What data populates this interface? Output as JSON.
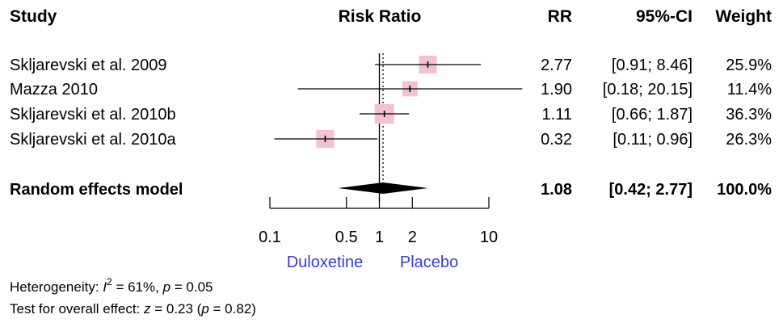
{
  "chart_data": {
    "type": "forest",
    "headers": {
      "study": "Study",
      "title": "Risk Ratio",
      "rr": "RR",
      "ci": "95%-CI",
      "weight": "Weight"
    },
    "studies": [
      {
        "name": "Skljarevski et al. 2009",
        "rr": 2.77,
        "lower": 0.91,
        "upper": 8.46,
        "rr_text": "2.77",
        "ci_text": "[0.91;  8.46]",
        "weight": 25.9,
        "weight_text": "25.9%"
      },
      {
        "name": "Mazza 2010",
        "rr": 1.9,
        "lower": 0.18,
        "upper": 20.15,
        "rr_text": "1.90",
        "ci_text": "[0.18; 20.15]",
        "weight": 11.4,
        "weight_text": "11.4%"
      },
      {
        "name": "Skljarevski et al. 2010b",
        "rr": 1.11,
        "lower": 0.66,
        "upper": 1.87,
        "rr_text": "1.11",
        "ci_text": "[0.66;  1.87]",
        "weight": 36.3,
        "weight_text": "36.3%"
      },
      {
        "name": "Skljarevski et al. 2010a",
        "rr": 0.32,
        "lower": 0.11,
        "upper": 0.96,
        "rr_text": "0.32",
        "ci_text": "[0.11;  0.96]",
        "weight": 26.3,
        "weight_text": "26.3%"
      }
    ],
    "summary": {
      "name": "Random effects model",
      "rr": 1.08,
      "lower": 0.42,
      "upper": 2.77,
      "rr_text": "1.08",
      "ci_text": "[0.42;  2.77]",
      "weight_text": "100.0%"
    },
    "x_axis": {
      "scale": "log",
      "ticks": [
        0.1,
        0.5,
        1,
        2,
        10
      ],
      "tick_labels": [
        "0.1",
        "0.5",
        "1",
        "2",
        "10"
      ],
      "range": [
        0.1,
        10
      ],
      "reference_line": 1
    },
    "favours": {
      "left": "Duloxetine",
      "right": "Placebo"
    },
    "heterogeneity": {
      "prefix": "Heterogeneity: ",
      "stat": "I",
      "sup": "2",
      "value": " = 61%, ",
      "p_label": "p",
      "p_value": " = 0.05"
    },
    "overall_test": {
      "prefix": "Test for overall effect: ",
      "z_label": "z",
      "z_value": " = 0.23 (",
      "p_label": "p",
      "p_value": " = 0.82)"
    },
    "colors": {
      "square": "#f4c2cf",
      "favour_text": "#3a3ad8",
      "line": "#000000"
    }
  }
}
